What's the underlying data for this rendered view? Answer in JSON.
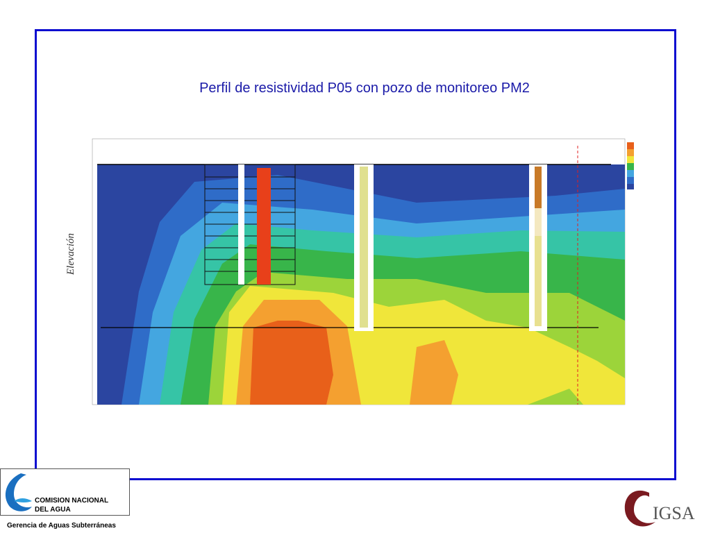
{
  "slide": {
    "title": "Perfil de resistividad  P05 con pozo de monitoreo PM2",
    "figure": {
      "axis_label": "Elevación"
    },
    "footer": {
      "logo_left": {
        "line1": "COMISION NACIONAL",
        "line2": "DEL  AGUA",
        "caption": "Gerencia de Aguas Subterráneas"
      },
      "logo_right": "IGSA"
    }
  }
}
